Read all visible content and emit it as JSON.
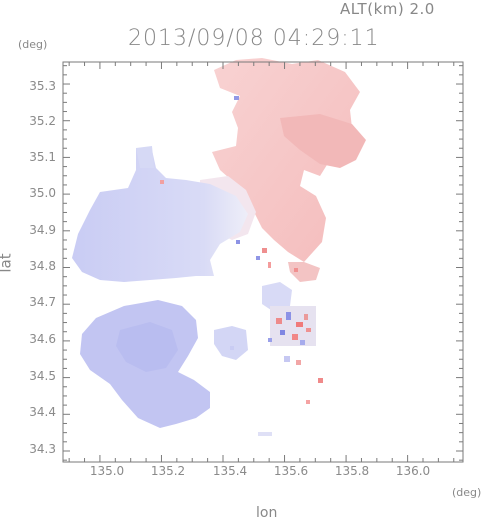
{
  "header": {
    "altitude_label": "ALT(km) 2.0",
    "datetime": "2013/09/08 04:29:11"
  },
  "axes": {
    "y_unit": "(deg)",
    "x_unit": "(deg)",
    "x_title": "lon",
    "y_title": "lat",
    "x_ticks": [
      "135.0",
      "135.2",
      "135.4",
      "135.6",
      "135.8",
      "136.0"
    ],
    "y_ticks": [
      "35.3",
      "35.2",
      "35.1",
      "35.0",
      "34.9",
      "34.8",
      "34.7",
      "34.6",
      "34.5",
      "34.4",
      "34.3"
    ],
    "x_range": [
      134.88,
      136.18
    ],
    "y_range": [
      34.27,
      35.36
    ]
  },
  "colors": {
    "frame": "#7a7a7a",
    "toward_radar": "#c8ccf6",
    "away_from_radar": "#f7c8c8",
    "near_zero": "#e8e9f7"
  }
}
